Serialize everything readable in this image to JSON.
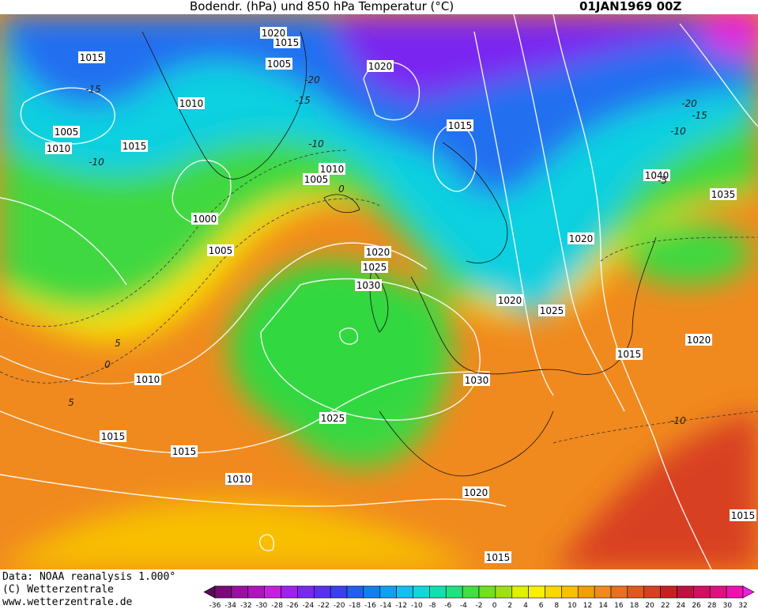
{
  "header": {
    "title": "Bodendr. (hPa) und 850 hPa Temperatur (°C)",
    "date": "01JAN1969 00Z"
  },
  "isobar_labels": [
    "1020",
    "1015",
    "1015",
    "1005",
    "1020",
    "1010",
    "1005",
    "1010",
    "1015",
    "1015",
    "1010",
    "1005",
    "1040",
    "1035",
    "1000",
    "1005",
    "1020",
    "1020",
    "1025",
    "1030",
    "1020",
    "1025",
    "1020",
    "1015",
    "1010",
    "1030",
    "1025",
    "1015",
    "1015",
    "1010",
    "1020",
    "1015",
    "1015"
  ],
  "temperature_labels": [
    "-15",
    "-20",
    "-15",
    "-10",
    "-10",
    "0",
    "5",
    "0",
    "5",
    "-10",
    "-20",
    "-15",
    "-10",
    "-5"
  ],
  "footer": {
    "source": "Data: NOAA reanalysis 1.000°",
    "copyright": "(C) Wetterzentrale",
    "url": "www.wetterzentrale.de"
  },
  "colorbar": {
    "labels": [
      "-36",
      "-34",
      "-32",
      "-30",
      "-28",
      "-26",
      "-24",
      "-22",
      "-20",
      "-18",
      "-16",
      "-14",
      "-12",
      "-10",
      "-8",
      "-6",
      "-4",
      "-2",
      "0",
      "2",
      "4",
      "6",
      "8",
      "10",
      "12",
      "14",
      "16",
      "18",
      "20",
      "22",
      "24",
      "26",
      "28",
      "30",
      "32"
    ],
    "colors": [
      "#5a0a5a",
      "#7a0a7a",
      "#9a10a0",
      "#b014c0",
      "#c81ee0",
      "#a020f0",
      "#7a28f0",
      "#5a30f0",
      "#3a40f0",
      "#2060f0",
      "#1080f0",
      "#10a0f0",
      "#10c0f0",
      "#10d8d8",
      "#10e0b0",
      "#20e080",
      "#40e040",
      "#70e020",
      "#a0e010",
      "#e0f000",
      "#f8f000",
      "#f8d800",
      "#f8c000",
      "#f0a000",
      "#f08a1e",
      "#e87020",
      "#e05820",
      "#d84020",
      "#c82020",
      "#c01040",
      "#d01060",
      "#e01080",
      "#f010b0",
      "#f020e0"
    ]
  }
}
